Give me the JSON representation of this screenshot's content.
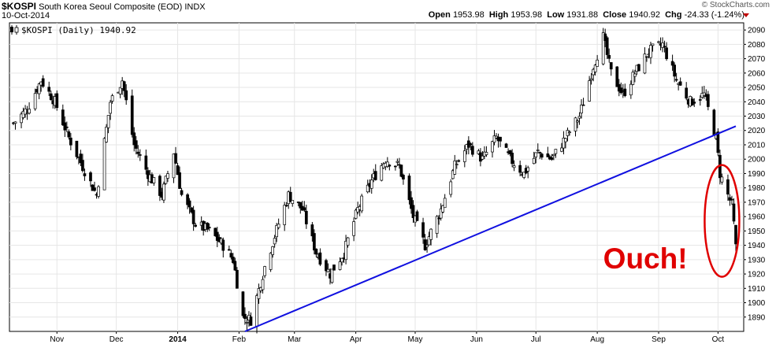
{
  "header": {
    "symbol": "$KOSPI",
    "name": "South Korea Seoul Composite (EOD)",
    "exchange": "INDX",
    "date": "10-Oct-2014",
    "brand": "© StockCharts.com",
    "open_label": "Open",
    "open": "1953.98",
    "high_label": "High",
    "high": "1953.98",
    "low_label": "Low",
    "low": "1931.88",
    "close_label": "Close",
    "close": "1940.92",
    "chg_label": "Chg",
    "chg": "-24.33 (-1.24%)"
  },
  "legend": "$KOSPI (Daily) 1940.92",
  "annotation": "Ouch!",
  "colors": {
    "candle": "#000000",
    "trendline": "#1010e0",
    "annotation": "#e00000",
    "grid": "#e6e6e6",
    "down_arrow": "#c00000"
  },
  "chart_data": {
    "type": "candlestick",
    "y_axis_side": "right",
    "ylim": [
      1880,
      2095
    ],
    "yticks": [
      1890,
      1900,
      1910,
      1920,
      1930,
      1940,
      1950,
      1960,
      1970,
      1980,
      1990,
      2000,
      2010,
      2020,
      2030,
      2040,
      2050,
      2060,
      2070,
      2080,
      2090
    ],
    "x_range": [
      "2013-10-10",
      "2014-10-10"
    ],
    "xticks": [
      {
        "label": "Nov",
        "date": "2013-11-01"
      },
      {
        "label": "Dec",
        "date": "2013-12-01"
      },
      {
        "label": "2014",
        "date": "2014-01-01",
        "bold": true
      },
      {
        "label": "Feb",
        "date": "2014-02-01"
      },
      {
        "label": "Mar",
        "date": "2014-03-01"
      },
      {
        "label": "Apr",
        "date": "2014-04-01"
      },
      {
        "label": "May",
        "date": "2014-05-01"
      },
      {
        "label": "Jun",
        "date": "2014-06-01"
      },
      {
        "label": "Jul",
        "date": "2014-07-01"
      },
      {
        "label": "Aug",
        "date": "2014-08-01"
      },
      {
        "label": "Sep",
        "date": "2014-09-01"
      },
      {
        "label": "Oct",
        "date": "2014-10-01"
      }
    ],
    "grid": true,
    "close_path": [
      {
        "date": "2013-10-10",
        "close": 2025
      },
      {
        "date": "2013-10-17",
        "close": 2035
      },
      {
        "date": "2013-10-24",
        "close": 2055
      },
      {
        "date": "2013-10-31",
        "close": 2040
      },
      {
        "date": "2013-11-07",
        "close": 2015
      },
      {
        "date": "2013-11-14",
        "close": 1995
      },
      {
        "date": "2013-11-21",
        "close": 1975
      },
      {
        "date": "2013-11-28",
        "close": 2040
      },
      {
        "date": "2013-12-04",
        "close": 2055
      },
      {
        "date": "2013-12-10",
        "close": 2010
      },
      {
        "date": "2013-12-17",
        "close": 1990
      },
      {
        "date": "2013-12-24",
        "close": 1975
      },
      {
        "date": "2013-12-30",
        "close": 2005
      },
      {
        "date": "2014-01-03",
        "close": 1975
      },
      {
        "date": "2014-01-10",
        "close": 1955
      },
      {
        "date": "2014-01-17",
        "close": 1950
      },
      {
        "date": "2014-01-24",
        "close": 1940
      },
      {
        "date": "2014-01-29",
        "close": 1930
      },
      {
        "date": "2014-02-03",
        "close": 1890
      },
      {
        "date": "2014-02-07",
        "close": 1888
      },
      {
        "date": "2014-02-14",
        "close": 1925
      },
      {
        "date": "2014-02-21",
        "close": 1955
      },
      {
        "date": "2014-02-26",
        "close": 1975
      },
      {
        "date": "2014-03-05",
        "close": 1965
      },
      {
        "date": "2014-03-12",
        "close": 1935
      },
      {
        "date": "2014-03-19",
        "close": 1920
      },
      {
        "date": "2014-03-26",
        "close": 1935
      },
      {
        "date": "2014-04-02",
        "close": 1965
      },
      {
        "date": "2014-04-09",
        "close": 1985
      },
      {
        "date": "2014-04-16",
        "close": 2000
      },
      {
        "date": "2014-04-23",
        "close": 1995
      },
      {
        "date": "2014-04-30",
        "close": 1960
      },
      {
        "date": "2014-05-06",
        "close": 1940
      },
      {
        "date": "2014-05-14",
        "close": 1965
      },
      {
        "date": "2014-05-21",
        "close": 1995
      },
      {
        "date": "2014-05-28",
        "close": 2010
      },
      {
        "date": "2014-06-04",
        "close": 2000
      },
      {
        "date": "2014-06-11",
        "close": 2015
      },
      {
        "date": "2014-06-18",
        "close": 2000
      },
      {
        "date": "2014-06-25",
        "close": 1990
      },
      {
        "date": "2014-07-02",
        "close": 2005
      },
      {
        "date": "2014-07-09",
        "close": 2000
      },
      {
        "date": "2014-07-16",
        "close": 2015
      },
      {
        "date": "2014-07-23",
        "close": 2030
      },
      {
        "date": "2014-07-30",
        "close": 2065
      },
      {
        "date": "2014-08-04",
        "close": 2085
      },
      {
        "date": "2014-08-08",
        "close": 2060
      },
      {
        "date": "2014-08-14",
        "close": 2045
      },
      {
        "date": "2014-08-20",
        "close": 2060
      },
      {
        "date": "2014-08-27",
        "close": 2075
      },
      {
        "date": "2014-09-03",
        "close": 2080
      },
      {
        "date": "2014-09-10",
        "close": 2055
      },
      {
        "date": "2014-09-17",
        "close": 2040
      },
      {
        "date": "2014-09-24",
        "close": 2045
      },
      {
        "date": "2014-09-30",
        "close": 2015
      },
      {
        "date": "2014-10-02",
        "close": 1990
      },
      {
        "date": "2014-10-06",
        "close": 1975
      },
      {
        "date": "2014-10-08",
        "close": 1968
      },
      {
        "date": "2014-10-10",
        "close": 1940.92
      }
    ],
    "trendline": [
      {
        "date": "2014-02-04",
        "value": 1880
      },
      {
        "date": "2014-10-10",
        "value": 2023
      }
    ]
  }
}
